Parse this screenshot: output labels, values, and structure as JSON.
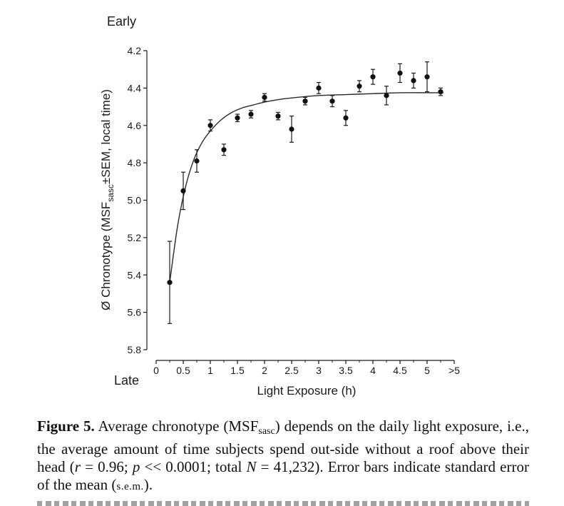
{
  "chart_data": {
    "type": "scatter",
    "top_label": "Early",
    "bottom_label": "Late",
    "ylabel": "Ø Chronotype (MSF",
    "ylabel_sub": "sasc",
    "ylabel_rest": "±SEM, local time)",
    "xlabel": "Light Exposure (h)",
    "y_inverted": true,
    "ylim": [
      5.8,
      4.2
    ],
    "xlim": [
      0,
      5.5
    ],
    "yticks": [
      4.2,
      4.4,
      4.6,
      4.8,
      5.0,
      5.2,
      5.4,
      5.6,
      5.8
    ],
    "ytick_labels": [
      "4.2",
      "4.4",
      "4.6",
      "4.8",
      "5.0",
      "5.2",
      "5.4",
      "5.6",
      "5.8"
    ],
    "xticks": [
      0,
      0.5,
      1,
      1.5,
      2,
      2.5,
      3,
      3.5,
      4,
      4.5,
      5,
      5.5
    ],
    "xtick_labels": [
      "0",
      "0.5",
      "1",
      "1.5",
      "2",
      "2.5",
      "3",
      "3.5",
      "4",
      "4.5",
      "5",
      ">5"
    ],
    "series": [
      {
        "type": "scatter",
        "x": [
          0.25,
          0.5,
          0.75,
          1.0,
          1.25,
          1.5,
          1.75,
          2.0,
          2.25,
          2.5,
          2.75,
          3.0,
          3.25,
          3.5,
          3.75,
          4.0,
          4.25,
          4.5,
          4.75,
          5.0,
          5.25
        ],
        "y": [
          5.44,
          4.95,
          4.79,
          4.6,
          4.73,
          4.56,
          4.54,
          4.45,
          4.55,
          4.62,
          4.47,
          4.4,
          4.47,
          4.56,
          4.39,
          4.34,
          4.44,
          4.32,
          4.36,
          4.34,
          4.42
        ],
        "err": [
          0.22,
          0.1,
          0.06,
          0.03,
          0.03,
          0.02,
          0.02,
          0.02,
          0.02,
          0.07,
          0.02,
          0.03,
          0.03,
          0.04,
          0.03,
          0.04,
          0.05,
          0.05,
          0.04,
          0.08,
          0.02
        ]
      },
      {
        "type": "line",
        "x": [
          0.25,
          0.4,
          0.55,
          0.7,
          0.85,
          1.0,
          1.2,
          1.4,
          1.6,
          1.8,
          2.0,
          2.3,
          2.6,
          3.0,
          3.5,
          4.0,
          4.5,
          5.0,
          5.3
        ],
        "y": [
          5.44,
          5.13,
          4.92,
          4.78,
          4.69,
          4.63,
          4.57,
          4.53,
          4.505,
          4.49,
          4.475,
          4.46,
          4.45,
          4.44,
          4.435,
          4.43,
          4.425,
          4.425,
          4.425
        ]
      }
    ]
  },
  "caption": {
    "label": "Figure 5.",
    "t1": " Average chronotype (MSF",
    "sub": "sasc",
    "t2": ") depends on the daily light exposure, i.e., the average amount of time subjects spend out-side without a roof above their head (",
    "r": "r",
    "t3": " = 0.96; ",
    "p": "p",
    "t4": " << 0.0001; total ",
    "n": "N",
    "t5": " = 41,232). Error bars indicate standard error of the mean (",
    "sem": "s.e.m.",
    "t6": ")."
  }
}
